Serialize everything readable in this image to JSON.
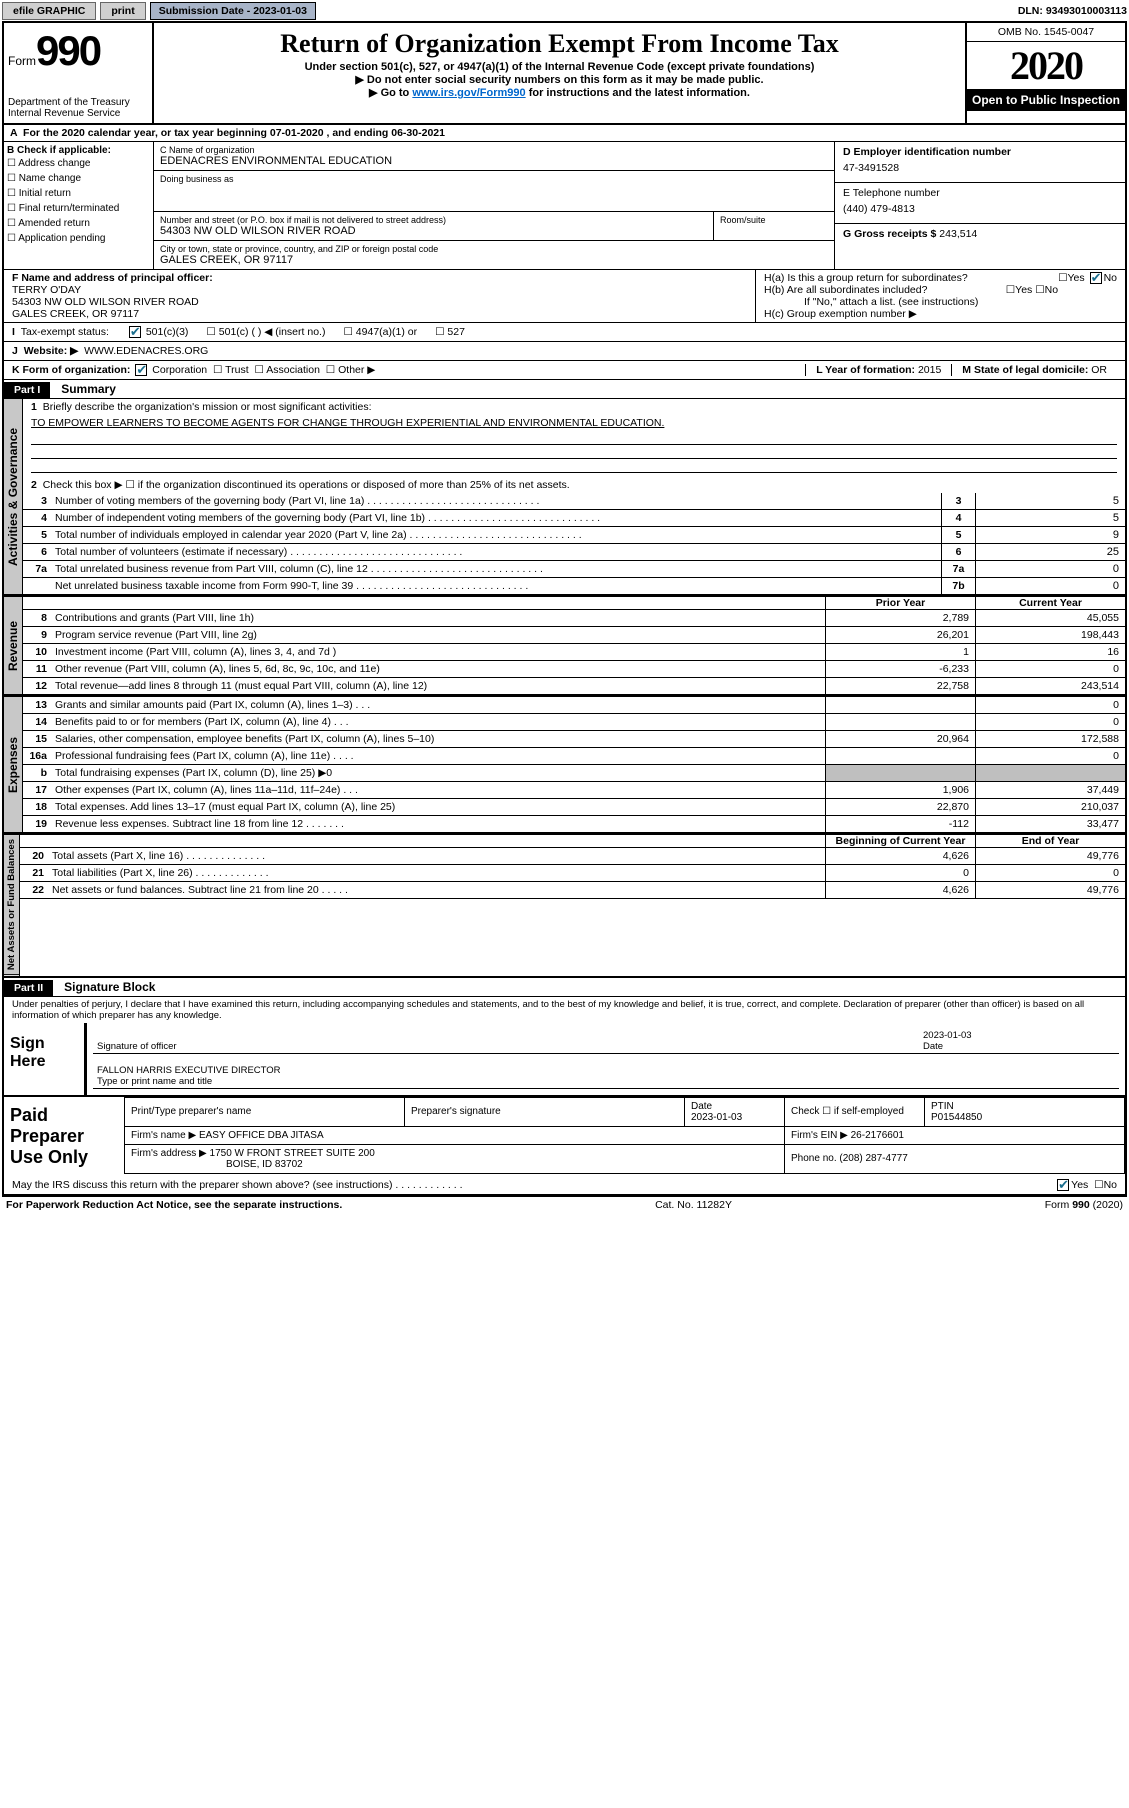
{
  "topbar": {
    "efile": "efile GRAPHIC",
    "print": "print",
    "subdate_label": "Submission Date - ",
    "subdate": "2023-01-03",
    "dln_label": "DLN: ",
    "dln": "93493010003113"
  },
  "header": {
    "form_prefix": "Form",
    "form_number": "990",
    "dept": "Department of the Treasury\nInternal Revenue Service",
    "title": "Return of Organization Exempt From Income Tax",
    "subtitle": "Under section 501(c), 527, or 4947(a)(1) of the Internal Revenue Code (except private foundations)",
    "line2": "▶ Do not enter social security numbers on this form as it may be made public.",
    "line3_pre": "▶ Go to ",
    "line3_link": "www.irs.gov/Form990",
    "line3_post": " for instructions and the latest information.",
    "omb": "OMB No. 1545-0047",
    "year": "2020",
    "open": "Open to Public Inspection"
  },
  "rowA": "For the 2020 calendar year, or tax year beginning 07-01-2020    , and ending 06-30-2021",
  "boxB": {
    "hdr": "B Check if applicable:",
    "items": [
      "Address change",
      "Name change",
      "Initial return",
      "Final return/terminated",
      "Amended return",
      "Application pending"
    ]
  },
  "boxC": {
    "name_label": "C Name of organization",
    "name": "EDENACRES ENVIRONMENTAL EDUCATION",
    "dba_label": "Doing business as",
    "street_label": "Number and street (or P.O. box if mail is not delivered to street address)",
    "room_label": "Room/suite",
    "street": "54303 NW OLD WILSON RIVER ROAD",
    "city_label": "City or town, state or province, country, and ZIP or foreign postal code",
    "city": "GALES CREEK, OR  97117"
  },
  "boxD": {
    "label": "D Employer identification number",
    "val": "47-3491528"
  },
  "boxE": {
    "label": "E Telephone number",
    "val": "(440) 479-4813"
  },
  "boxG": {
    "label": "G Gross receipts $ ",
    "val": "243,514"
  },
  "boxF": {
    "label": "F  Name and address of principal officer:",
    "name": "TERRY O'DAY",
    "addr1": "54303 NW OLD WILSON RIVER ROAD",
    "addr2": "GALES CREEK, OR  97117"
  },
  "boxH": {
    "ha": "H(a)  Is this a group return for subordinates?",
    "hb": "H(b)  Are all subordinates included?",
    "note": "If \"No,\" attach a list. (see instructions)",
    "hc": "H(c)  Group exemption number ▶"
  },
  "taxstatus": {
    "label": "Tax-exempt status:",
    "opt1": "501(c)(3)",
    "opt2": "501(c) (  ) ◀ (insert no.)",
    "opt3": "4947(a)(1) or",
    "opt4": "527"
  },
  "boxJ": {
    "label": "Website: ▶",
    "val": "WWW.EDENACRES.ORG"
  },
  "boxK": {
    "label": "K Form of organization:",
    "opts": [
      "Corporation",
      "Trust",
      "Association",
      "Other ▶"
    ]
  },
  "boxL": {
    "label": "L Year of formation: ",
    "val": "2015"
  },
  "boxM": {
    "label": "M State of legal domicile: ",
    "val": "OR"
  },
  "part1": {
    "bar": "Part I",
    "title": "Summary"
  },
  "summary": {
    "q1": "Briefly describe the organization's mission or most significant activities:",
    "mission": "TO EMPOWER LEARNERS TO BECOME AGENTS FOR CHANGE THROUGH EXPERIENTIAL AND ENVIRONMENTAL EDUCATION.",
    "q2": "Check this box ▶ ☐  if the organization discontinued its operations or disposed of more than 25% of its net assets.",
    "rows_gov": [
      {
        "n": "3",
        "t": "Number of voting members of the governing body (Part VI, line 1a)",
        "box": "3",
        "v": "5"
      },
      {
        "n": "4",
        "t": "Number of independent voting members of the governing body (Part VI, line 1b)",
        "box": "4",
        "v": "5"
      },
      {
        "n": "5",
        "t": "Total number of individuals employed in calendar year 2020 (Part V, line 2a)",
        "box": "5",
        "v": "9"
      },
      {
        "n": "6",
        "t": "Total number of volunteers (estimate if necessary)",
        "box": "6",
        "v": "25"
      },
      {
        "n": "7a",
        "t": "Total unrelated business revenue from Part VIII, column (C), line 12",
        "box": "7a",
        "v": "0"
      },
      {
        "n": "",
        "t": "Net unrelated business taxable income from Form 990-T, line 39",
        "box": "7b",
        "v": "0"
      }
    ],
    "col_prior": "Prior Year",
    "col_current": "Current Year",
    "col_begin": "Beginning of Current Year",
    "col_end": "End of Year",
    "revenue": [
      {
        "n": "8",
        "t": "Contributions and grants (Part VIII, line 1h)",
        "p": "2,789",
        "c": "45,055"
      },
      {
        "n": "9",
        "t": "Program service revenue (Part VIII, line 2g)",
        "p": "26,201",
        "c": "198,443"
      },
      {
        "n": "10",
        "t": "Investment income (Part VIII, column (A), lines 3, 4, and 7d )",
        "p": "1",
        "c": "16"
      },
      {
        "n": "11",
        "t": "Other revenue (Part VIII, column (A), lines 5, 6d, 8c, 9c, 10c, and 11e)",
        "p": "-6,233",
        "c": "0"
      },
      {
        "n": "12",
        "t": "Total revenue—add lines 8 through 11 (must equal Part VIII, column (A), line 12)",
        "p": "22,758",
        "c": "243,514"
      }
    ],
    "expenses": [
      {
        "n": "13",
        "t": "Grants and similar amounts paid (Part IX, column (A), lines 1–3)  .   .   .",
        "p": "",
        "c": "0"
      },
      {
        "n": "14",
        "t": "Benefits paid to or for members (Part IX, column (A), line 4)  .   .   .",
        "p": "",
        "c": "0"
      },
      {
        "n": "15",
        "t": "Salaries, other compensation, employee benefits (Part IX, column (A), lines 5–10)",
        "p": "20,964",
        "c": "172,588"
      },
      {
        "n": "16a",
        "t": "Professional fundraising fees (Part IX, column (A), line 11e)  .   .   .   .",
        "p": "",
        "c": "0"
      },
      {
        "n": "b",
        "t": "Total fundraising expenses (Part IX, column (D), line 25) ▶0",
        "p": "SHADE",
        "c": "SHADE"
      },
      {
        "n": "17",
        "t": "Other expenses (Part IX, column (A), lines 11a–11d, 11f–24e)  .   .   .",
        "p": "1,906",
        "c": "37,449"
      },
      {
        "n": "18",
        "t": "Total expenses. Add lines 13–17 (must equal Part IX, column (A), line 25)",
        "p": "22,870",
        "c": "210,037"
      },
      {
        "n": "19",
        "t": "Revenue less expenses. Subtract line 18 from line 12  .   .   .   .   .   .   .",
        "p": "-112",
        "c": "33,477"
      }
    ],
    "netassets": [
      {
        "n": "20",
        "t": "Total assets (Part X, line 16)  .   .   .   .   .   .   .   .   .   .   .   .   .   .",
        "p": "4,626",
        "c": "49,776"
      },
      {
        "n": "21",
        "t": "Total liabilities (Part X, line 26)  .   .   .   .   .   .   .   .   .   .   .   .   .",
        "p": "0",
        "c": "0"
      },
      {
        "n": "22",
        "t": "Net assets or fund balances. Subtract line 21 from line 20  .   .   .   .   .",
        "p": "4,626",
        "c": "49,776"
      }
    ]
  },
  "vtabs": {
    "gov": "Activities & Governance",
    "rev": "Revenue",
    "exp": "Expenses",
    "net": "Net Assets or Fund Balances"
  },
  "part2": {
    "bar": "Part II",
    "title": "Signature Block"
  },
  "perjury": "Under penalties of perjury, I declare that I have examined this return, including accompanying schedules and statements, and to the best of my knowledge and belief, it is true, correct, and complete. Declaration of preparer (other than officer) is based on all information of which preparer has any knowledge.",
  "sign": {
    "here": "Sign Here",
    "sig_label": "Signature of officer",
    "date_label": "Date",
    "date": "2023-01-03",
    "name": "FALLON HARRIS  EXECUTIVE DIRECTOR",
    "name_label": "Type or print name and title"
  },
  "prep": {
    "title": "Paid Preparer Use Only",
    "h1": "Print/Type preparer's name",
    "h2": "Preparer's signature",
    "h3": "Date",
    "h3v": "2023-01-03",
    "h4": "Check ☐ if self-employed",
    "h5": "PTIN",
    "h5v": "P01544850",
    "firm_label": "Firm's name    ▶ ",
    "firm": "EASY OFFICE DBA JITASA",
    "ein_label": "Firm's EIN ▶ ",
    "ein": "26-2176601",
    "addr_label": "Firm's address ▶ ",
    "addr1": "1750 W FRONT STREET SUITE 200",
    "addr2": "BOISE, ID  83702",
    "phone_label": "Phone no. ",
    "phone": "(208) 287-4777"
  },
  "discuss": "May the IRS discuss this return with the preparer shown above? (see instructions)   .    .    .    .    .    .    .    .    .    .    .    .",
  "foot": {
    "l": "For Paperwork Reduction Act Notice, see the separate instructions.",
    "m": "Cat. No. 11282Y",
    "r": "Form 990 (2020)"
  },
  "yes": "Yes",
  "no": "No"
}
